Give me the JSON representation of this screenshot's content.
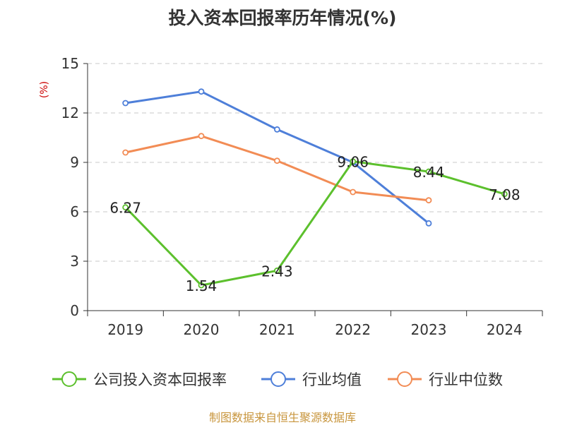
{
  "title": "投入资本回报率历年情况(%)",
  "source": "制图数据来自恒生聚源数据库",
  "chart_data": {
    "type": "line",
    "title": "投入资本回报率历年情况(%)",
    "ylabel": "(%)",
    "ylim": [
      0,
      15
    ],
    "yticks": [
      0,
      3,
      6,
      9,
      12,
      15
    ],
    "categories": [
      "2019",
      "2020",
      "2021",
      "2022",
      "2023",
      "2024"
    ],
    "grid": true,
    "legend_position": "bottom",
    "series": [
      {
        "name": "公司投入资本回报率",
        "color": "#5cc02d",
        "values": [
          6.27,
          1.54,
          2.43,
          9.06,
          8.44,
          7.08
        ],
        "labels": [
          "6.27",
          "1.54",
          "2.43",
          "9.06",
          "8.44",
          "7.08"
        ]
      },
      {
        "name": "行业均值",
        "color": "#4e7fd9",
        "values": [
          12.6,
          13.3,
          11.0,
          9.0,
          5.3,
          null
        ]
      },
      {
        "name": "行业中位数",
        "color": "#f28c55",
        "values": [
          9.6,
          10.6,
          9.1,
          7.2,
          6.7,
          null
        ]
      }
    ]
  }
}
